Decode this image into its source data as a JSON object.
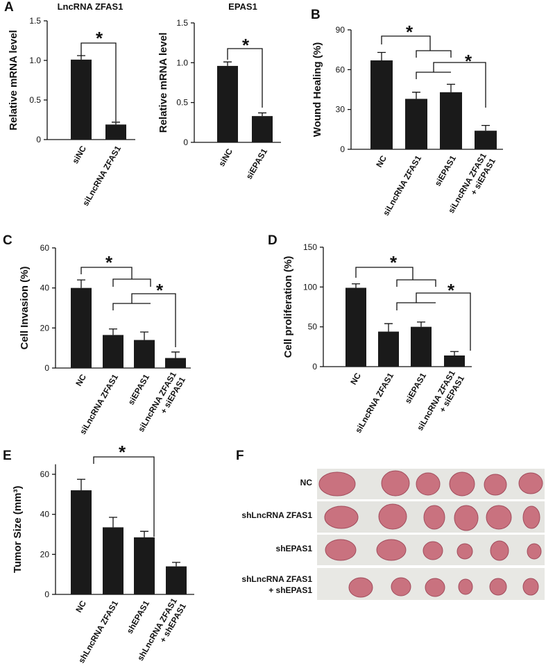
{
  "chart_data": [
    {
      "type": "bar",
      "panel": "A",
      "title": "LncRNA ZFAS1",
      "y_label": "Relative mRNA level",
      "categories": [
        "siNC",
        "siLncRNA ZFAS1"
      ],
      "values": [
        1.01,
        0.19
      ],
      "errors": [
        0.05,
        0.03
      ],
      "color": "#1a1a1a",
      "ylim": [
        0,
        1.5
      ],
      "yticks": [
        0,
        0.5,
        {
          "value": 1,
          "label": "1.0"
        },
        1.5
      ],
      "annotations": [
        "*"
      ]
    },
    {
      "type": "bar",
      "title": "EPAS1",
      "y_label": "Relative mRNA level",
      "categories": [
        "siNC",
        "siEPAS1"
      ],
      "values": [
        0.96,
        0.33
      ],
      "errors": [
        0.05,
        0.04
      ],
      "color": "#1a1a1a",
      "ylim": [
        0,
        1.5
      ],
      "yticks": [
        0,
        0.5,
        {
          "value": 1,
          "label": "1.0"
        },
        1.5
      ],
      "annotations": [
        "*"
      ]
    },
    {
      "type": "bar",
      "panel": "B",
      "y_label": "Wound Healing (%)",
      "categories": [
        "NC",
        "siLncRNA ZFAS1",
        "siEPAS1",
        [
          "siLncRNA ZFAS1",
          "+ siEPAS1"
        ]
      ],
      "values": [
        67,
        38,
        43,
        14
      ],
      "errors": [
        6,
        5,
        6,
        4
      ],
      "color": "#1a1a1a",
      "ylim": [
        0,
        90
      ],
      "yticks": [
        0,
        30,
        60,
        90
      ],
      "annotations": [
        "*",
        "*"
      ]
    },
    {
      "type": "bar",
      "panel": "C",
      "y_label": "Cell Invasion (%)",
      "categories": [
        "NC",
        "siLncRNA ZFAS1",
        "siEPAS1",
        [
          "siLncRNA ZFAS1",
          "+ siEPAS1"
        ]
      ],
      "values": [
        40,
        16.5,
        14,
        5
      ],
      "errors": [
        4,
        3,
        4,
        3
      ],
      "color": "#1a1a1a",
      "ylim": [
        0,
        60
      ],
      "yticks": [
        0,
        20,
        40,
        60
      ],
      "annotations": [
        "*",
        "*"
      ]
    },
    {
      "type": "bar",
      "panel": "D",
      "y_label": "Cell proliferation (%)",
      "categories": [
        "NC",
        "siLncRNA ZFAS1",
        "siEPAS1",
        [
          "siLncRNA ZFAS1",
          "+ siEPAS1"
        ]
      ],
      "values": [
        99,
        44,
        50,
        14
      ],
      "errors": [
        5,
        10,
        6,
        5
      ],
      "color": "#1a1a1a",
      "ylim": [
        0,
        150
      ],
      "yticks": [
        0,
        50,
        100,
        150
      ],
      "annotations": [
        "*",
        "*"
      ]
    },
    {
      "type": "bar",
      "panel": "E",
      "y_label": "Tumor Size (mm³)",
      "categories": [
        "NC",
        "shLncRNA ZFAS1",
        "shEPAS1",
        [
          "shLncRNA ZFAS1",
          "+ shEPAS1"
        ]
      ],
      "values": [
        52,
        33.5,
        28.5,
        14
      ],
      "errors": [
        5.5,
        5,
        3,
        2
      ],
      "color": "#1a1a1a",
      "ylim": [
        0,
        65
      ],
      "yticks": [
        0,
        20,
        40,
        60
      ],
      "annotations": [
        "*"
      ]
    }
  ],
  "photo_panel": {
    "panel": "F",
    "rows": [
      "NC",
      "shLncRNA ZFAS1",
      "shEPAS1",
      [
        "shLncRNA ZFAS1",
        "+ shEPAS1"
      ]
    ]
  }
}
